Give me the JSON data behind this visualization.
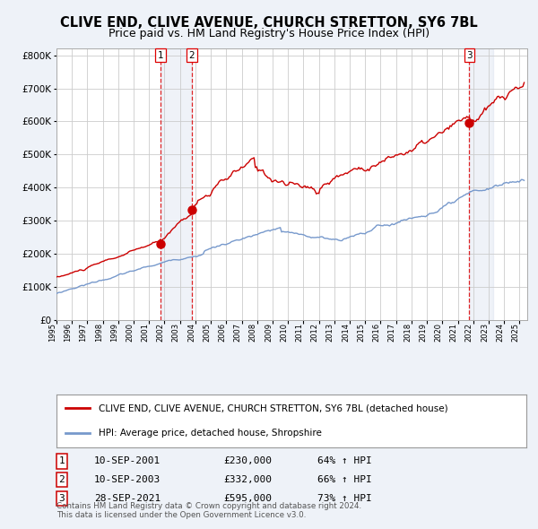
{
  "title": "CLIVE END, CLIVE AVENUE, CHURCH STRETTON, SY6 7BL",
  "subtitle": "Price paid vs. HM Land Registry's House Price Index (HPI)",
  "legend_line1": "CLIVE END, CLIVE AVENUE, CHURCH STRETTON, SY6 7BL (detached house)",
  "legend_line2": "HPI: Average price, detached house, Shropshire",
  "transactions": [
    {
      "id": 1,
      "date": "10-SEP-2001",
      "price": 230000,
      "hpi_pct": "64%",
      "x_year": 2001.75
    },
    {
      "id": 2,
      "date": "10-SEP-2003",
      "price": 332000,
      "hpi_pct": "66%",
      "x_year": 2003.75
    },
    {
      "id": 3,
      "date": "28-SEP-2021",
      "price": 595000,
      "hpi_pct": "73%",
      "x_year": 2021.75
    }
  ],
  "shade_regions": [
    {
      "x_start": 2001.75,
      "x_end": 2003.75
    },
    {
      "x_start": 2021.75,
      "x_end": 2023.3
    }
  ],
  "red_line_color": "#cc0000",
  "blue_line_color": "#7799cc",
  "background_color": "#eef2f8",
  "plot_bg_color": "#ffffff",
  "grid_color": "#cccccc",
  "dashed_line_color": "#dd0000",
  "marker_color": "#cc0000",
  "title_fontsize": 10.5,
  "subtitle_fontsize": 9,
  "xlim": [
    1995.0,
    2025.5
  ],
  "ylim": [
    0,
    820000
  ],
  "yticks": [
    0,
    100000,
    200000,
    300000,
    400000,
    500000,
    600000,
    700000,
    800000
  ],
  "ytick_labels": [
    "£0",
    "£100K",
    "£200K",
    "£300K",
    "£400K",
    "£500K",
    "£600K",
    "£700K",
    "£800K"
  ],
  "xtick_years": [
    1995,
    1996,
    1997,
    1998,
    1999,
    2000,
    2001,
    2002,
    2003,
    2004,
    2005,
    2006,
    2007,
    2008,
    2009,
    2010,
    2011,
    2012,
    2013,
    2014,
    2015,
    2016,
    2017,
    2018,
    2019,
    2020,
    2021,
    2022,
    2023,
    2024,
    2025
  ],
  "footer_text": "Contains HM Land Registry data © Crown copyright and database right 2024.\nThis data is licensed under the Open Government Licence v3.0.",
  "table_rows": [
    {
      "id": 1,
      "date": "10-SEP-2001",
      "price": "£230,000",
      "hpi": "64% ↑ HPI"
    },
    {
      "id": 2,
      "date": "10-SEP-2003",
      "price": "£332,000",
      "hpi": "66% ↑ HPI"
    },
    {
      "id": 3,
      "date": "28-SEP-2021",
      "price": "£595,000",
      "hpi": "73% ↑ HPI"
    }
  ]
}
